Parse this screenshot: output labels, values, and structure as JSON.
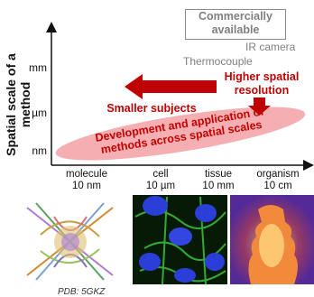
{
  "y_axis": {
    "label": "Spatial scale of a method",
    "ticks": [
      "mm",
      "µm",
      "nm"
    ]
  },
  "x_axis": {
    "categories": [
      {
        "name": "molecule",
        "size": "10 nm"
      },
      {
        "name": "cell",
        "size": "10 µm"
      },
      {
        "name": "tissue",
        "size": "10 mm"
      },
      {
        "name": "organism",
        "size": "10 cm"
      }
    ]
  },
  "annotations": {
    "commercial_box": "Commercially available",
    "ir_camera": "IR camera",
    "thermocouple": "Thermocouple",
    "higher_resolution": "Higher spatial resolution",
    "smaller_subjects": "Smaller subjects",
    "development": "Development and application of methods across spatial scales"
  },
  "images": {
    "caption": "PDB: 5GKZ"
  },
  "colors": {
    "arrow_red": "#c00000",
    "ellipse_pink": "#f4a6ab",
    "gray": "#7f7f7f"
  }
}
